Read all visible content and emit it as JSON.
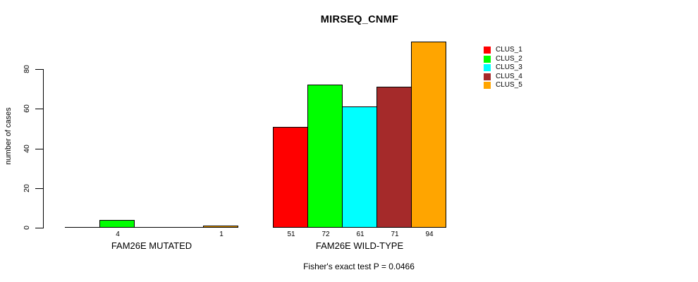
{
  "title": "MIRSEQ_CNMF",
  "y_axis": {
    "label": "number of cases"
  },
  "footer": "Fisher's exact test P = 0.0466",
  "legend": {
    "items": [
      {
        "label": "CLUS_1",
        "color": "#FF0000"
      },
      {
        "label": "CLUS_2",
        "color": "#00FF00"
      },
      {
        "label": "CLUS_3",
        "color": "#00FFFF"
      },
      {
        "label": "CLUS_4",
        "color": "#A52A2A"
      },
      {
        "label": "CLUS_5",
        "color": "#FFA500"
      }
    ]
  },
  "chart_data": {
    "type": "bar",
    "title": "MIRSEQ_CNMF",
    "xlabel": "",
    "ylabel": "number of cases",
    "ylim": [
      0,
      94
    ],
    "yticks": [
      0,
      20,
      40,
      60,
      80
    ],
    "grid": false,
    "legend_position": "right",
    "categories": [
      "FAM26E MUTATED",
      "FAM26E WILD-TYPE"
    ],
    "series": [
      {
        "name": "CLUS_1",
        "color": "#FF0000",
        "values": [
          0,
          51
        ]
      },
      {
        "name": "CLUS_2",
        "color": "#00FF00",
        "values": [
          4,
          72
        ]
      },
      {
        "name": "CLUS_3",
        "color": "#00FFFF",
        "values": [
          0,
          61
        ]
      },
      {
        "name": "CLUS_4",
        "color": "#A52A2A",
        "values": [
          0,
          71
        ]
      },
      {
        "name": "CLUS_5",
        "color": "#FFA500",
        "values": [
          1,
          94
        ]
      }
    ],
    "bar_value_labels": [
      [
        "",
        "4",
        "",
        "",
        "1"
      ],
      [
        "51",
        "72",
        "61",
        "71",
        "94"
      ]
    ],
    "annotation": "Fisher's exact test P = 0.0466"
  }
}
